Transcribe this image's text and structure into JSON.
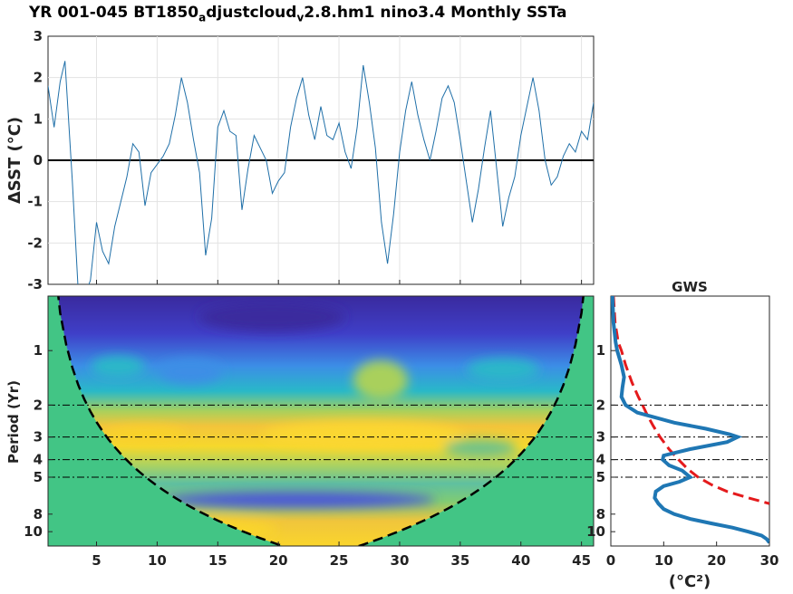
{
  "title": {
    "part1": "YR 001-045 BT1850",
    "sub1": "a",
    "part2": "djustcloud",
    "sub2": "v",
    "part3": "2.8.hm1 nino3.4 Monthly SSTa"
  },
  "colors": {
    "sst_line": "#1f6fa8",
    "gws_line": "#1f77b4",
    "significance": "#e41a1c",
    "coi_fill": "#42c585"
  },
  "chart_data": [
    {
      "type": "line",
      "name": "sst-timeseries",
      "title": "YR 001-045 BT1850adjustcloudv2.8.hm1 nino3.4 Monthly SSTa",
      "xlabel": "",
      "ylabel": "ΔSST (°C)",
      "xlim": [
        1,
        46
      ],
      "ylim": [
        -3,
        3
      ],
      "yticks": [
        -3,
        -2,
        -1,
        0,
        1,
        2,
        3
      ],
      "xticks": [
        5,
        10,
        15,
        20,
        25,
        30,
        35,
        40,
        45
      ],
      "grid": true,
      "x": [
        1.0,
        1.5,
        2.0,
        2.4,
        3.0,
        3.5,
        4.0,
        4.5,
        5.0,
        5.5,
        6.0,
        6.5,
        7.0,
        7.5,
        8.0,
        8.5,
        9.0,
        9.5,
        10.0,
        10.5,
        11.0,
        11.5,
        12.0,
        12.5,
        13.0,
        13.5,
        14.0,
        14.5,
        15.0,
        15.5,
        16.0,
        16.5,
        17.0,
        17.5,
        18.0,
        18.5,
        19.0,
        19.5,
        20.0,
        20.5,
        21.0,
        21.5,
        22.0,
        22.5,
        23.0,
        23.5,
        24.0,
        24.5,
        25.0,
        25.5,
        26.0,
        26.5,
        27.0,
        27.5,
        28.0,
        28.5,
        29.0,
        29.5,
        30.0,
        30.5,
        31.0,
        31.5,
        32.0,
        32.5,
        33.0,
        33.5,
        34.0,
        34.5,
        35.0,
        35.5,
        36.0,
        36.5,
        37.0,
        37.5,
        38.0,
        38.5,
        39.0,
        39.5,
        40.0,
        40.5,
        41.0,
        41.5,
        42.0,
        42.5,
        43.0,
        43.5,
        44.0,
        44.5,
        45.0,
        45.5,
        46.0
      ],
      "y": [
        1.8,
        0.8,
        1.9,
        2.4,
        -0.5,
        -3.2,
        -3.3,
        -2.9,
        -1.5,
        -2.2,
        -2.5,
        -1.6,
        -1.0,
        -0.4,
        0.4,
        0.2,
        -1.1,
        -0.3,
        -0.1,
        0.1,
        0.4,
        1.1,
        2.0,
        1.4,
        0.5,
        -0.3,
        -2.3,
        -1.4,
        0.8,
        1.2,
        0.7,
        0.6,
        -1.2,
        -0.2,
        0.6,
        0.3,
        0.0,
        -0.8,
        -0.5,
        -0.3,
        0.8,
        1.5,
        2.0,
        1.1,
        0.5,
        1.3,
        0.6,
        0.5,
        0.9,
        0.2,
        -0.2,
        0.8,
        2.3,
        1.4,
        0.3,
        -1.5,
        -2.5,
        -1.3,
        0.2,
        1.2,
        1.9,
        1.1,
        0.5,
        0.0,
        0.7,
        1.5,
        1.8,
        1.4,
        0.5,
        -0.5,
        -1.5,
        -0.7,
        0.3,
        1.2,
        -0.2,
        -1.6,
        -0.9,
        -0.4,
        0.6,
        1.3,
        2.0,
        1.2,
        0.0,
        -0.6,
        -0.4,
        0.1,
        0.4,
        0.2,
        0.7,
        0.5,
        1.4
      ]
    },
    {
      "type": "heatmap",
      "name": "wavelet-power-spectrum",
      "xlabel": "",
      "ylabel": "Period (Yr)",
      "xlim": [
        1,
        46
      ],
      "ylim": [
        0.5,
        12
      ],
      "yscale": "log",
      "xticks": [
        5,
        10,
        15,
        20,
        25,
        30,
        35,
        40,
        45
      ],
      "yticks": [
        1,
        2,
        3,
        4,
        5,
        8,
        10
      ],
      "reference_periods": [
        2,
        3,
        4,
        5
      ],
      "band_means": [
        {
          "period": 0.6,
          "level": 0.05
        },
        {
          "period": 1.0,
          "level": 0.25
        },
        {
          "period": 1.6,
          "level": 0.45
        },
        {
          "period": 2.5,
          "level": 0.75
        },
        {
          "period": 3.0,
          "level": 0.85
        },
        {
          "period": 4.0,
          "level": 0.7
        },
        {
          "period": 6.0,
          "level": 0.55
        },
        {
          "period": 9.0,
          "level": 0.75
        },
        {
          "period": 11.0,
          "level": 0.85
        }
      ]
    },
    {
      "type": "line",
      "name": "global-wavelet-spectrum",
      "title": "GWS",
      "xlabel": "(°C²)",
      "ylabel": "",
      "xlim": [
        0,
        30
      ],
      "xticks": [
        0,
        10,
        20,
        30
      ],
      "yticks": [
        1,
        2,
        3,
        4,
        5,
        8,
        10
      ],
      "series": [
        {
          "name": "",
          "periods": [
            0.5,
            0.7,
            0.9,
            1.0,
            1.2,
            1.4,
            1.6,
            1.8,
            2.0,
            2.2,
            2.5,
            2.7,
            2.9,
            3.0,
            3.2,
            3.5,
            3.8,
            4.0,
            4.3,
            4.6,
            5.0,
            5.3,
            5.6,
            6.0,
            6.5,
            7.0,
            7.5,
            8.0,
            8.5,
            9.0,
            9.5,
            10.0,
            10.5,
            11.0,
            11.5
          ],
          "power": [
            0.3,
            0.5,
            0.9,
            1.2,
            2.0,
            2.5,
            2.2,
            2.0,
            2.8,
            5.0,
            12.0,
            18.0,
            22.5,
            24.0,
            22.0,
            15.0,
            10.0,
            9.8,
            11.0,
            13.5,
            15.0,
            13.0,
            10.0,
            8.5,
            8.3,
            9.0,
            10.0,
            12.0,
            15.0,
            19.0,
            23.0,
            26.0,
            28.5,
            29.5,
            30.0
          ]
        },
        {
          "name": "",
          "periods": [
            0.5,
            0.7,
            0.9,
            1.0,
            1.2,
            1.5,
            1.8,
            2.0,
            2.3,
            2.6,
            3.0,
            3.5,
            4.0,
            4.5,
            5.0,
            5.5,
            6.0,
            6.5,
            7.0
          ],
          "power": [
            0.5,
            0.8,
            1.4,
            2.0,
            2.8,
            4.0,
            5.2,
            6.0,
            7.0,
            8.0,
            9.3,
            11.0,
            12.8,
            14.5,
            16.5,
            19.0,
            22.0,
            26.0,
            30.0
          ]
        }
      ]
    }
  ]
}
